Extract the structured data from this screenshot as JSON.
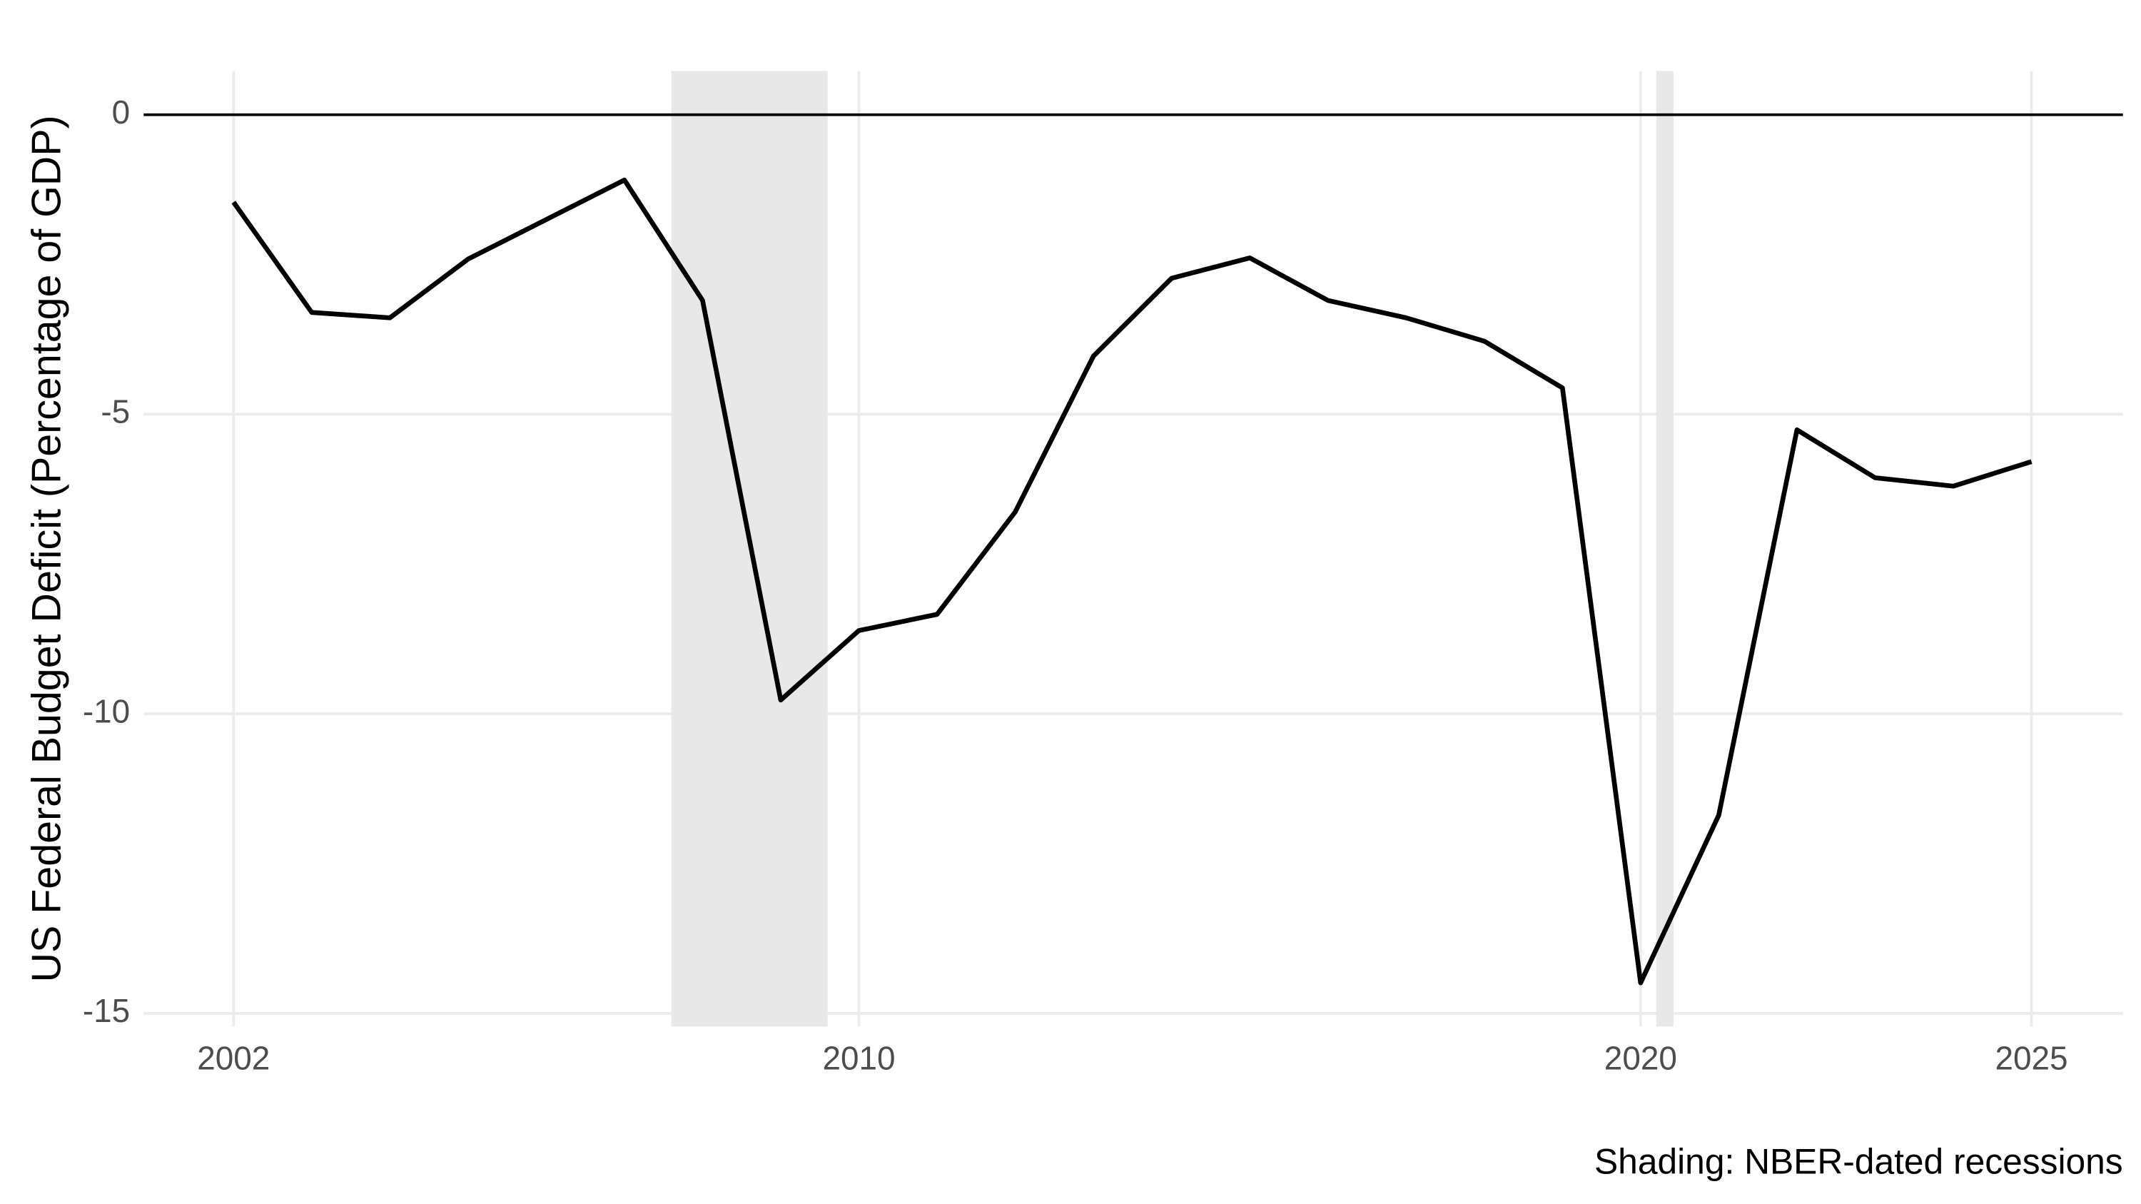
{
  "chart_data": {
    "type": "line",
    "ylabel": "US Federal Budget Deficit (Percentage of GDP)",
    "caption": "Shading: NBER-dated recessions",
    "x": [
      2002,
      2003,
      2004,
      2005,
      2006,
      2007,
      2008,
      2009,
      2010,
      2011,
      2012,
      2013,
      2014,
      2015,
      2016,
      2017,
      2018,
      2019,
      2020,
      2021,
      2022,
      2023,
      2024,
      2025
    ],
    "series": [
      {
        "color": "#000000",
        "values": [
          -1.46,
          -3.3,
          -3.39,
          -2.41,
          -1.75,
          -1.09,
          -3.1,
          -9.77,
          -8.61,
          -8.34,
          -6.63,
          -4.03,
          -2.73,
          -2.39,
          -3.1,
          -3.39,
          -3.78,
          -4.56,
          -14.49,
          -11.69,
          -5.26,
          -6.06,
          -6.2,
          -5.79
        ]
      }
    ],
    "recessions": [
      [
        2007.6,
        2009.6
      ],
      [
        2020.2,
        2020.42
      ]
    ],
    "recession_color": "#e8e8e8",
    "hline": 0,
    "xlim": [
      2000.85,
      2026.17
    ],
    "ylim": [
      -15.22,
      0.73
    ],
    "xticks": [
      2002,
      2010,
      2020,
      2025
    ],
    "yticks": [
      0,
      -5,
      -10,
      -15
    ],
    "grid": true
  }
}
